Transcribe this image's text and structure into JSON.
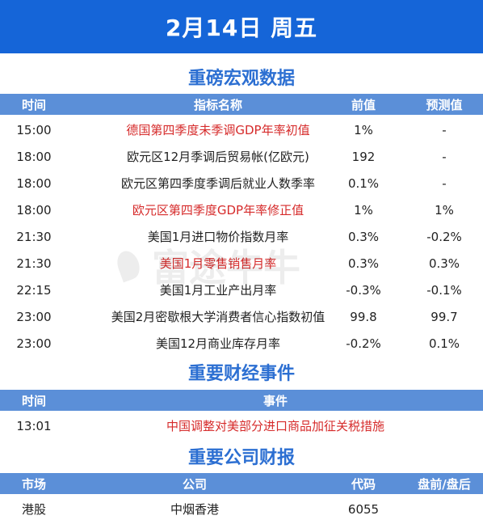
{
  "banner": {
    "title": "2月14日 周五"
  },
  "macro": {
    "title": "重磅宏观数据",
    "headers": {
      "time": "时间",
      "name": "指标名称",
      "prev": "前值",
      "forecast": "预测值"
    },
    "rows": [
      {
        "time": "15:00",
        "name": "德国第四季度未季调GDP年率初值",
        "prev": "1%",
        "forecast": "-",
        "highlight": true
      },
      {
        "time": "18:00",
        "name": "欧元区12月季调后贸易帐(亿欧元)",
        "prev": "192",
        "forecast": "-",
        "highlight": false
      },
      {
        "time": "18:00",
        "name": "欧元区第四季度季调后就业人数季率",
        "prev": "0.1%",
        "forecast": "-",
        "highlight": false
      },
      {
        "time": "18:00",
        "name": "欧元区第四季度GDP年率修正值",
        "prev": "1%",
        "forecast": "1%",
        "highlight": true
      },
      {
        "time": "21:30",
        "name": "美国1月进口物价指数月率",
        "prev": "0.3%",
        "forecast": "-0.2%",
        "highlight": false
      },
      {
        "time": "21:30",
        "name": "美国1月零售销售月率",
        "prev": "0.3%",
        "forecast": "0.3%",
        "highlight": true
      },
      {
        "time": "22:15",
        "name": "美国1月工业产出月率",
        "prev": "-0.3%",
        "forecast": "-0.1%",
        "highlight": false
      },
      {
        "time": "23:00",
        "name": "美国2月密歇根大学消费者信心指数初值",
        "prev": "99.8",
        "forecast": "99.7",
        "highlight": false
      },
      {
        "time": "23:00",
        "name": "美国12月商业库存月率",
        "prev": "-0.2%",
        "forecast": "0.1%",
        "highlight": false
      }
    ]
  },
  "events": {
    "title": "重要财经事件",
    "headers": {
      "time": "时间",
      "event": "事件"
    },
    "rows": [
      {
        "time": "13:01",
        "event": "中国调整对美部分进口商品加征关税措施",
        "highlight": true
      }
    ]
  },
  "earnings": {
    "title": "重要公司财报",
    "headers": {
      "market": "市场",
      "company": "公司",
      "code": "代码",
      "session": "盘前/盘后"
    },
    "rows": [
      {
        "market": "港股",
        "company": "中烟香港",
        "code": "6055",
        "session": ""
      }
    ]
  },
  "watermark": {
    "text": "富途牛牛"
  },
  "colors": {
    "banner": "#1565d8",
    "header_bar": "#5b8fd8",
    "section_title": "#2c6fd2",
    "highlight_text": "#d62b2b"
  }
}
